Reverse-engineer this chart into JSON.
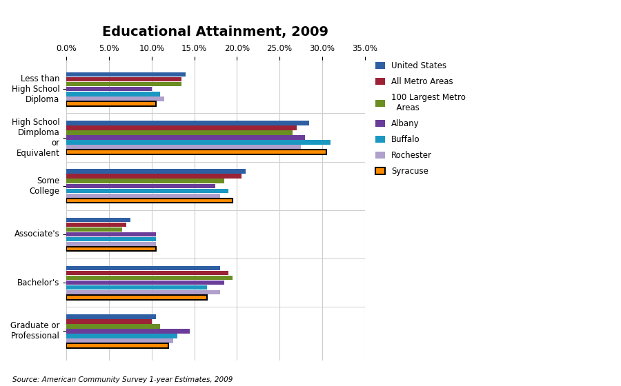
{
  "title": "Educational Attainment, 2009",
  "source": "Source: American Community Survey 1-year Estimates, 2009",
  "categories": [
    "Graduate or\nProfessional",
    "Bachelor's",
    "Associate's",
    "Some\nCollege",
    "High School\nDimploma\nor\nEquivalent",
    "Less than\nHigh School\nDiploma"
  ],
  "series_names": [
    "United States",
    "All Metro Areas",
    "100 Largest Metro\n  Areas",
    "Albany",
    "Buffalo",
    "Rochester",
    "Syracuse"
  ],
  "series_colors": [
    "#2E5FA3",
    "#9B2335",
    "#6B8E23",
    "#6A3D9A",
    "#1B98C2",
    "#B0A0CC",
    "#FF8C00"
  ],
  "series_edgecolors": [
    "none",
    "none",
    "none",
    "none",
    "none",
    "none",
    "#000000"
  ],
  "data": [
    [
      10.5,
      10.0,
      11.0,
      14.5,
      13.0,
      12.5,
      12.0
    ],
    [
      18.0,
      19.0,
      19.5,
      18.5,
      16.5,
      18.0,
      16.5
    ],
    [
      7.5,
      7.0,
      6.5,
      10.5,
      10.5,
      10.5,
      10.5
    ],
    [
      21.0,
      20.5,
      18.5,
      17.5,
      19.0,
      18.0,
      19.5
    ],
    [
      28.5,
      27.0,
      26.5,
      28.0,
      31.0,
      27.5,
      30.5
    ],
    [
      14.0,
      13.5,
      13.5,
      10.0,
      11.0,
      11.5,
      10.5
    ]
  ],
  "xlim": [
    0,
    35
  ],
  "xtick_vals": [
    0,
    5,
    10,
    15,
    20,
    25,
    30,
    35
  ],
  "xtick_labels": [
    "0.0%",
    "5.0%",
    "10.0%",
    "15.0%",
    "20.0%",
    "25.0%",
    "30.0%",
    "35.0%"
  ],
  "bar_height": 0.1,
  "background_color": "#ffffff",
  "grid_color": "#cccccc",
  "title_fontsize": 14,
  "axis_fontsize": 8.5,
  "label_fontsize": 8.5,
  "legend_fontsize": 8.5
}
